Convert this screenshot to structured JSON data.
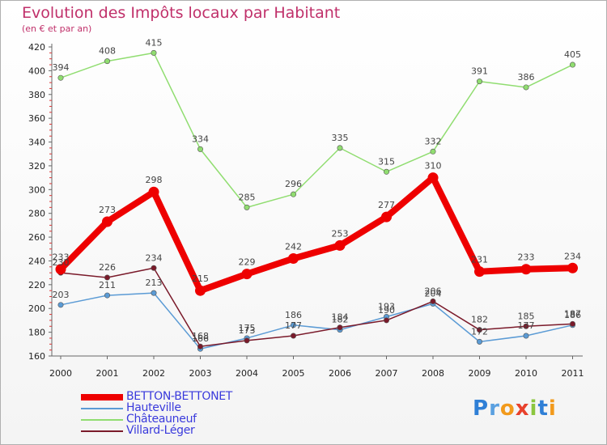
{
  "title": "Evolution des Impôts locaux par Habitant",
  "subtitle": "(en € et par an)",
  "logo_letters": [
    "P",
    "r",
    "o",
    "x",
    "i",
    "t",
    "i"
  ],
  "logo_colors": [
    "#2f7fd6",
    "#5aa0e0",
    "#f29a1c",
    "#e8412c",
    "#8bc63f",
    "#2f7fd6",
    "#f29a1c"
  ],
  "chart_data": {
    "type": "line",
    "title": "Evolution des Impôts locaux par Habitant",
    "subtitle": "(en € et par an)",
    "categories": [
      "2000",
      "2001",
      "2002",
      "2003",
      "2004",
      "2005",
      "2006",
      "2007",
      "2008",
      "2009",
      "2010",
      "2011"
    ],
    "ylim": [
      160,
      420
    ],
    "yticks": [
      160,
      180,
      200,
      220,
      240,
      260,
      280,
      300,
      320,
      340,
      360,
      380,
      400,
      420
    ],
    "grid": false,
    "legend_position": "bottom-left",
    "series": [
      {
        "name": "BETTON-BETTONET",
        "color": "#ee0000",
        "width": 8,
        "values": [
          233,
          273,
          298,
          215,
          229,
          242,
          253,
          277,
          310,
          231,
          233,
          234
        ]
      },
      {
        "name": "Hauteville",
        "color": "#5b9bd5",
        "width": 1.5,
        "values": [
          203,
          211,
          213,
          166,
          175,
          186,
          182,
          193,
          204,
          172,
          177,
          186
        ]
      },
      {
        "name": "Châteauneuf",
        "color": "#90dd70",
        "width": 1.5,
        "values": [
          394,
          408,
          415,
          334,
          285,
          296,
          335,
          315,
          332,
          391,
          386,
          405
        ]
      },
      {
        "name": "Villard-Léger",
        "color": "#7a1a2a",
        "width": 1.5,
        "values": [
          230,
          226,
          234,
          168,
          173,
          177,
          184,
          190,
          206,
          182,
          185,
          187
        ]
      }
    ]
  }
}
